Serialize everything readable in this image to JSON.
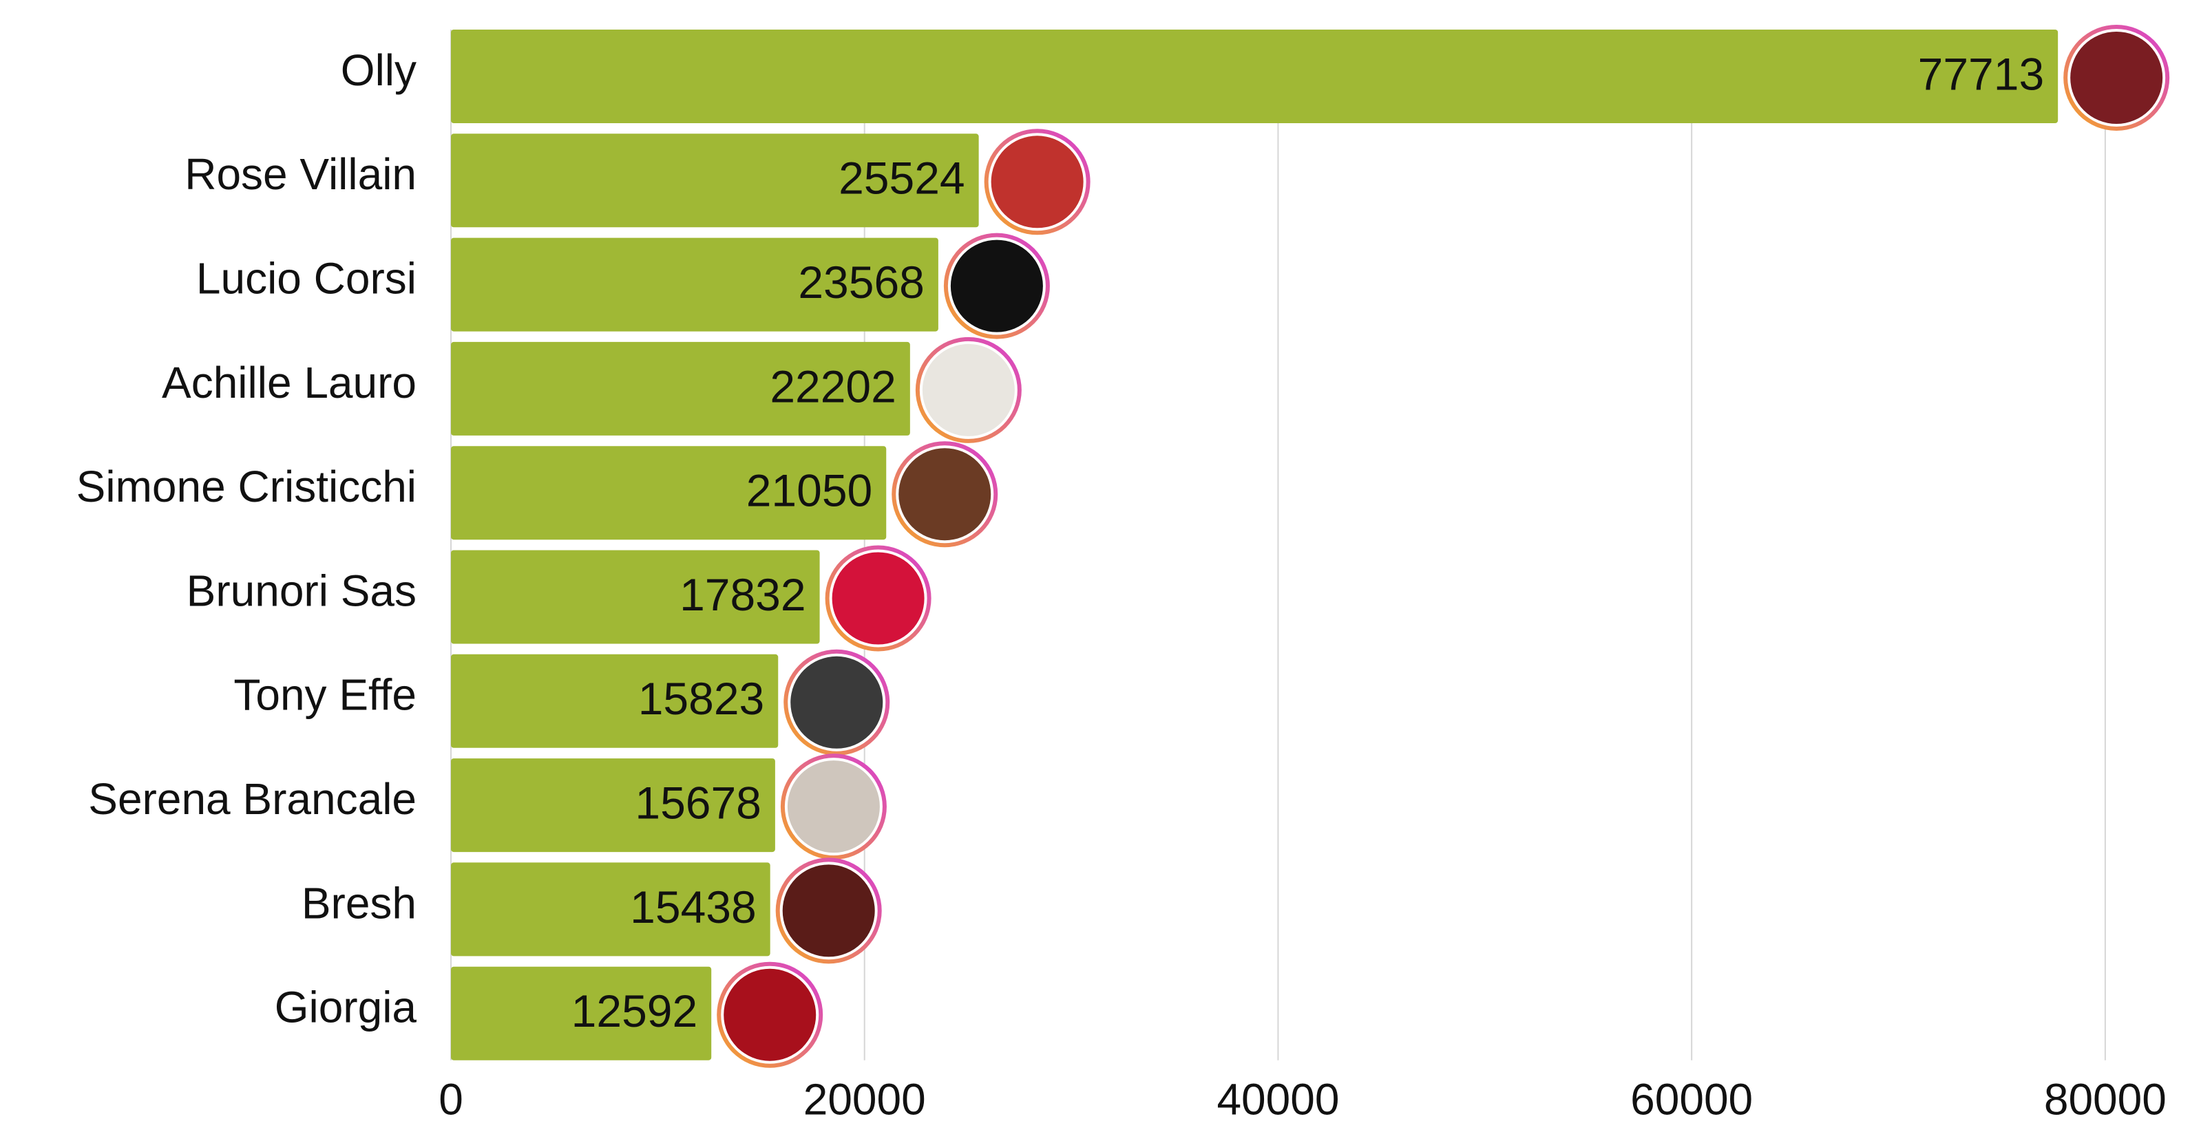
{
  "chart_data": {
    "type": "barh",
    "categories": [
      "Olly",
      "Rose Villain",
      "Lucio Corsi",
      "Achille Lauro",
      "Simone Cristicchi",
      "Brunori Sas",
      "Tony Effe",
      "Serena Brancale",
      "Bresh",
      "Giorgia"
    ],
    "values": [
      77713,
      25524,
      23568,
      22202,
      21050,
      17832,
      15823,
      15678,
      15438,
      12592
    ],
    "color": "#a0b835",
    "xlim": [
      0,
      84000
    ],
    "xticks": [
      0,
      20000,
      40000,
      60000,
      80000
    ],
    "grid": true
  }
}
